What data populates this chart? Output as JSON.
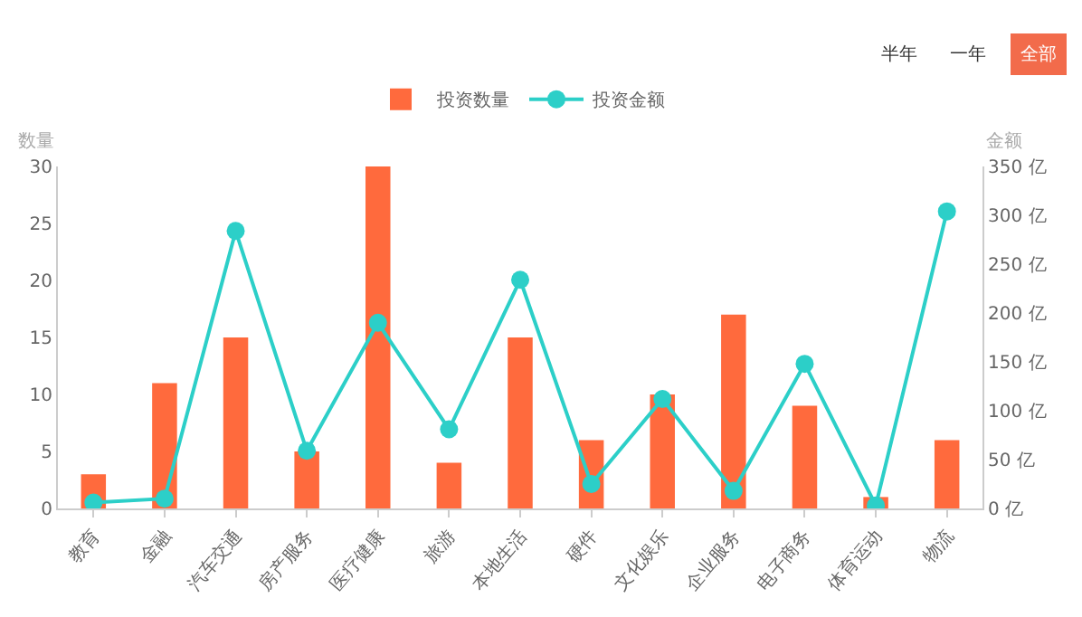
{
  "chart_data": {
    "type": "bar",
    "ylabel": "数量",
    "y2label": "金额",
    "categories": [
      "教育",
      "金融",
      "汽车交通",
      "房产服务",
      "医疗健康",
      "旅游",
      "本地生活",
      "硬件",
      "文化娱乐",
      "企业服务",
      "电子商务",
      "体育运动",
      "物流"
    ],
    "series": [
      {
        "name": "投资数量",
        "color": "#ff6a3d",
        "values": [
          3,
          11,
          15,
          5,
          30,
          4,
          15,
          6,
          10,
          17,
          9,
          1,
          6
        ]
      },
      {
        "name": "投资金额",
        "type": "line",
        "axis": "y2",
        "color": "#2ccfc8",
        "values": [
          6,
          10,
          284,
          59,
          190,
          81,
          234,
          25,
          112,
          18,
          148,
          3,
          304
        ]
      }
    ],
    "ylim": [
      0,
      30
    ],
    "yticks": [
      0,
      5,
      10,
      15,
      20,
      25,
      30
    ],
    "y2lim": [
      0,
      350
    ],
    "y2ticks": [
      {
        "value": 0,
        "label": "0 亿"
      },
      {
        "value": 50,
        "label": "50 亿"
      },
      {
        "value": 100,
        "label": "100 亿"
      },
      {
        "value": 150,
        "label": "150 亿"
      },
      {
        "value": 200,
        "label": "200 亿"
      },
      {
        "value": 250,
        "label": "250 亿"
      },
      {
        "value": 300,
        "label": "300 亿"
      },
      {
        "value": 350,
        "label": "350 亿"
      }
    ],
    "grid": false,
    "legend": "top",
    "marker": "circle",
    "annotations": [
      "半年",
      "一年",
      "全部"
    ]
  }
}
